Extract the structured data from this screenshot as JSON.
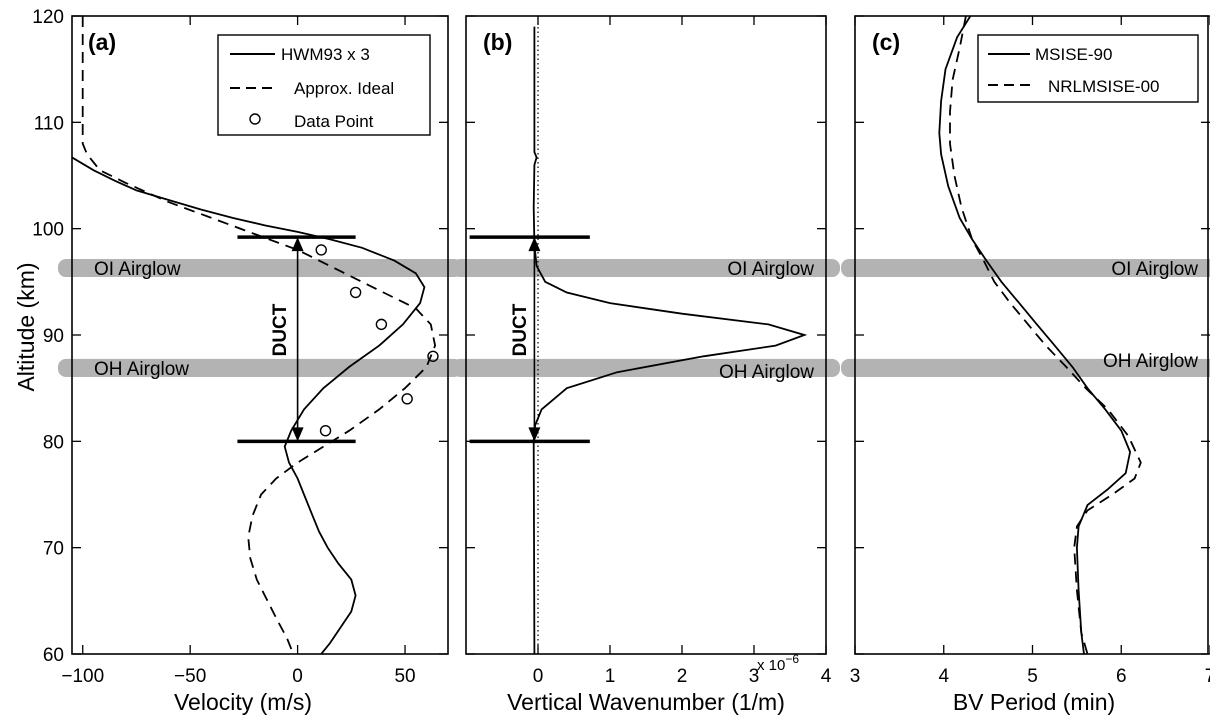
{
  "chart_data": [
    {
      "type": "line",
      "panel_tag": "(a)",
      "xlabel": "Velocity (m/s)",
      "ylabel": "Altitude (km)",
      "xlim": [
        -105,
        70
      ],
      "ylim": [
        60,
        120
      ],
      "xticks": [
        -100,
        -50,
        0,
        50
      ],
      "xtick_labels": [
        "−100",
        "−50",
        "0",
        "50"
      ],
      "yticks": [
        60,
        70,
        80,
        90,
        100,
        110,
        120
      ],
      "ytick_labels": [
        "60",
        "70",
        "80",
        "90",
        "100",
        "110",
        "120"
      ],
      "grid": false,
      "legend_position": "top-right",
      "series": [
        {
          "name": "HWM93 x 3",
          "style": "solid",
          "points": [
            [
              -105,
              106.7
            ],
            [
              -95,
              105.5
            ],
            [
              -85,
              104.5
            ],
            [
              -75,
              103.6
            ],
            [
              -60,
              102.7
            ],
            [
              -45,
              101.8
            ],
            [
              -30,
              101.0
            ],
            [
              -15,
              100.3
            ],
            [
              0,
              99.7
            ],
            [
              15,
              99.0
            ],
            [
              30,
              98.2
            ],
            [
              45,
              97.0
            ],
            [
              55,
              95.8
            ],
            [
              59,
              94.5
            ],
            [
              57,
              93.0
            ],
            [
              49,
              91.0
            ],
            [
              38,
              89.0
            ],
            [
              24,
              87.0
            ],
            [
              12,
              85.0
            ],
            [
              3,
              83.0
            ],
            [
              -3,
              81.0
            ],
            [
              -6,
              79.5
            ],
            [
              -4,
              78.0
            ],
            [
              0,
              76.5
            ],
            [
              3,
              75.0
            ],
            [
              7,
              73.0
            ],
            [
              10,
              71.5
            ],
            [
              14,
              70.0
            ],
            [
              19,
              68.5
            ],
            [
              25,
              67.0
            ],
            [
              27,
              65.5
            ],
            [
              25,
              64.0
            ],
            [
              20,
              62.5
            ],
            [
              15,
              61.0
            ],
            [
              11,
              60.0
            ]
          ]
        },
        {
          "name": "Approx. Ideal",
          "style": "dashed",
          "points": [
            [
              -100,
              120.0
            ],
            [
              -100,
              108.0
            ],
            [
              -98,
              107.0
            ],
            [
              -92,
              105.5
            ],
            [
              -80,
              104.3
            ],
            [
              -60,
              102.5
            ],
            [
              -40,
              101.0
            ],
            [
              -20,
              99.5
            ],
            [
              0,
              98.0
            ],
            [
              20,
              96.0
            ],
            [
              40,
              94.0
            ],
            [
              55,
              92.5
            ],
            [
              62,
              91.0
            ],
            [
              64,
              89.0
            ],
            [
              60,
              87.0
            ],
            [
              50,
              85.0
            ],
            [
              38,
              83.0
            ],
            [
              24,
              81.0
            ],
            [
              12,
              79.5
            ],
            [
              0,
              78.0
            ],
            [
              -10,
              76.5
            ],
            [
              -17,
              75.0
            ],
            [
              -21,
              73.0
            ],
            [
              -23,
              71.0
            ],
            [
              -22,
              69.0
            ],
            [
              -19,
              67.0
            ],
            [
              -14,
              65.0
            ],
            [
              -9,
              63.0
            ],
            [
              -5,
              61.5
            ],
            [
              -2,
              60.0
            ]
          ]
        },
        {
          "name": "Data Point",
          "style": "markers",
          "points": [
            [
              11,
              98
            ],
            [
              27,
              94
            ],
            [
              39,
              91
            ],
            [
              63,
              88
            ],
            [
              51,
              84
            ],
            [
              13,
              81
            ]
          ]
        }
      ],
      "annotations": {
        "duct_label": "DUCT",
        "duct_range": [
          80,
          99.2
        ],
        "duct_arrow_x": 0,
        "bars_x": [
          -28,
          27
        ],
        "bands": [
          {
            "center": 96.3,
            "label": "OI Airglow"
          },
          {
            "center": 86.9,
            "label": "OH Airglow"
          }
        ]
      }
    },
    {
      "type": "line",
      "panel_tag": "(b)",
      "xlabel": "Vertical Wavenumber (1/m)",
      "ylabel": "",
      "xlim": [
        -1,
        4
      ],
      "ylim": [
        60,
        120
      ],
      "xticks": [
        0,
        1,
        2,
        3,
        4
      ],
      "xtick_labels": [
        "0",
        "1",
        "2",
        "3",
        "4"
      ],
      "x_multiplier": "x 10",
      "x_multiplier_exp": "−6",
      "grid": false,
      "series": [
        {
          "name": "",
          "style": "solid",
          "points": [
            [
              -0.05,
              60
            ],
            [
              -0.06,
              80
            ],
            [
              -0.04,
              81.5
            ],
            [
              0.05,
              83
            ],
            [
              0.4,
              85
            ],
            [
              1.1,
              86.5
            ],
            [
              2.3,
              88.0
            ],
            [
              3.3,
              89.0
            ],
            [
              3.7,
              90.0
            ],
            [
              3.2,
              91.0
            ],
            [
              2.0,
              92.0
            ],
            [
              1.0,
              93.0
            ],
            [
              0.4,
              94.0
            ],
            [
              0.1,
              95.0
            ],
            [
              -0.02,
              96.5
            ],
            [
              -0.05,
              98.5
            ],
            [
              -0.06,
              102
            ],
            [
              -0.05,
              106
            ],
            [
              -0.02,
              106.7
            ],
            [
              -0.05,
              107.2
            ],
            [
              -0.05,
              119
            ]
          ]
        },
        {
          "name": "",
          "style": "dotted",
          "points": [
            [
              0,
              60
            ],
            [
              0,
              120
            ]
          ]
        }
      ],
      "annotations": {
        "duct_label": "DUCT",
        "duct_range": [
          80,
          99.2
        ],
        "duct_arrow_x": -0.05,
        "bars_x": [
          -0.95,
          0.72
        ],
        "bands": [
          {
            "center": 96.3,
            "label": "OI Airglow"
          },
          {
            "center": 86.9,
            "label": "OH Airglow"
          }
        ]
      }
    },
    {
      "type": "line",
      "panel_tag": "(c)",
      "xlabel": "BV Period (min)",
      "ylabel": "",
      "xlim": [
        3,
        7
      ],
      "ylim": [
        60,
        120
      ],
      "xticks": [
        3,
        4,
        5,
        6,
        7
      ],
      "xtick_labels": [
        "3",
        "4",
        "5",
        "6",
        "7"
      ],
      "grid": false,
      "legend_position": "top-right",
      "series": [
        {
          "name": "MSISE-90",
          "style": "solid",
          "points": [
            [
              4.3,
              120
            ],
            [
              4.15,
              118
            ],
            [
              4.02,
              115
            ],
            [
              3.97,
              112
            ],
            [
              3.95,
              109
            ],
            [
              3.97,
              107
            ],
            [
              4.05,
              104
            ],
            [
              4.18,
              101
            ],
            [
              4.32,
              99
            ],
            [
              4.48,
              97
            ],
            [
              4.65,
              95
            ],
            [
              4.85,
              93
            ],
            [
              5.05,
              91
            ],
            [
              5.25,
              89
            ],
            [
              5.45,
              87
            ],
            [
              5.62,
              85
            ],
            [
              5.82,
              83
            ],
            [
              6.0,
              81
            ],
            [
              6.1,
              79
            ],
            [
              6.05,
              77
            ],
            [
              5.85,
              75.5
            ],
            [
              5.62,
              74
            ],
            [
              5.52,
              72
            ],
            [
              5.5,
              70
            ],
            [
              5.52,
              66
            ],
            [
              5.55,
              62
            ],
            [
              5.58,
              60
            ]
          ]
        },
        {
          "name": "NRLMSISE-00",
          "style": "dashed",
          "points": [
            [
              4.25,
              120
            ],
            [
              4.18,
              117
            ],
            [
              4.1,
              114
            ],
            [
              4.07,
              111
            ],
            [
              4.07,
              108
            ],
            [
              4.12,
              105
            ],
            [
              4.2,
              102
            ],
            [
              4.32,
              99
            ],
            [
              4.45,
              97
            ],
            [
              4.57,
              95
            ],
            [
              4.75,
              93
            ],
            [
              4.95,
              91
            ],
            [
              5.15,
              89
            ],
            [
              5.38,
              87
            ],
            [
              5.6,
              85
            ],
            [
              5.85,
              83
            ],
            [
              6.08,
              80.5
            ],
            [
              6.22,
              78
            ],
            [
              6.15,
              76.5
            ],
            [
              5.9,
              75
            ],
            [
              5.62,
              73.5
            ],
            [
              5.5,
              72
            ],
            [
              5.47,
              70
            ],
            [
              5.5,
              66
            ],
            [
              5.55,
              62
            ],
            [
              5.62,
              60
            ]
          ]
        }
      ],
      "annotations": {
        "bands": [
          {
            "center": 96.3,
            "label": "OI Airglow"
          },
          {
            "center": 86.9,
            "label": "OH Airglow"
          }
        ]
      }
    }
  ],
  "colors": {
    "band": "#b3b3b3",
    "line": "#000000"
  }
}
